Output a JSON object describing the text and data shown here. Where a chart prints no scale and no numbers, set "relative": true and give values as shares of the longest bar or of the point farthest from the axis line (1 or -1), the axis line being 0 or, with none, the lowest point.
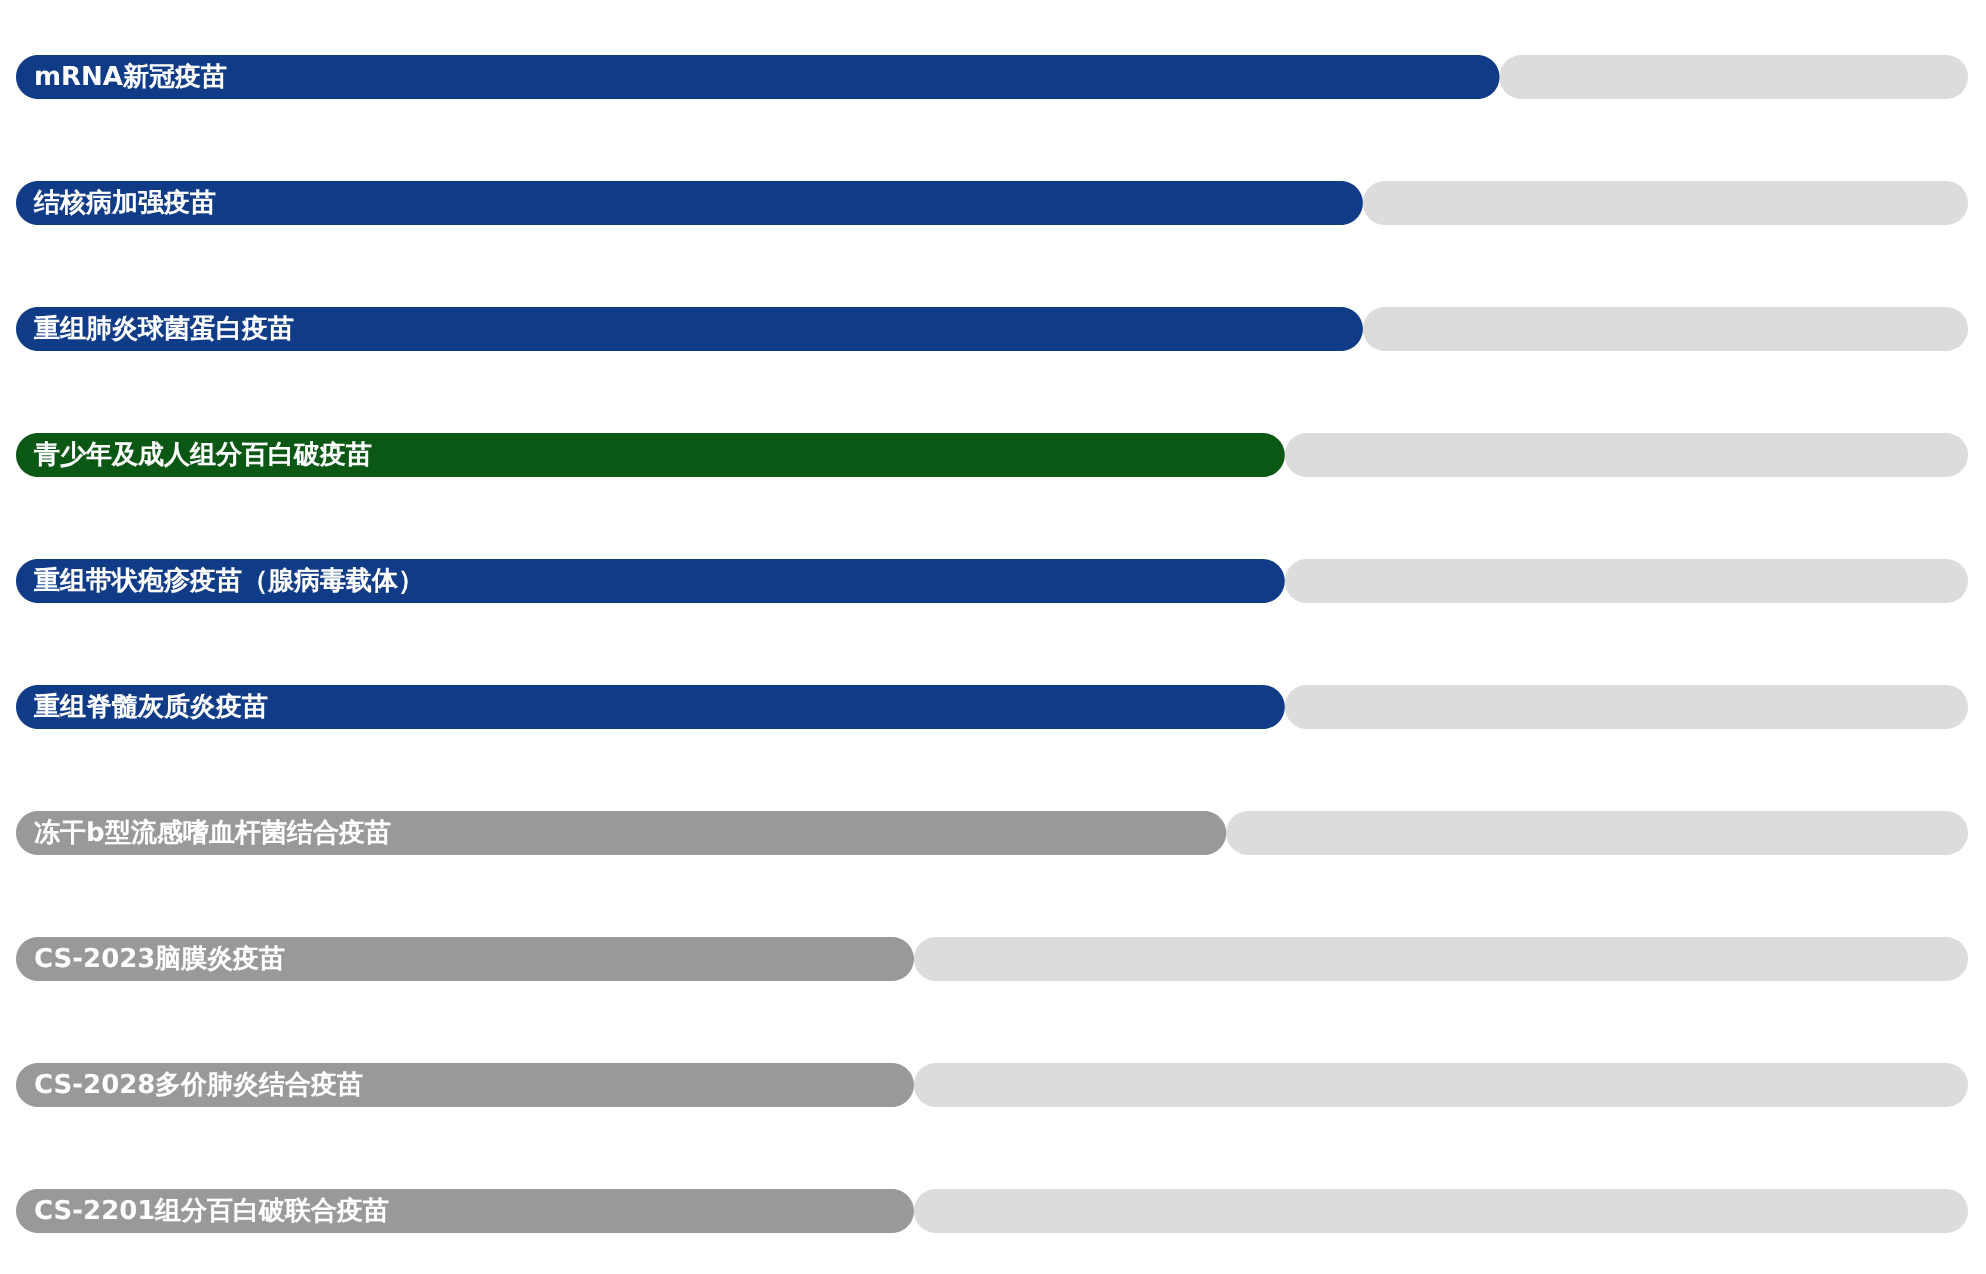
{
  "chart_data": {
    "type": "bar",
    "orientation": "horizontal",
    "stacked": true,
    "relative": true,
    "grid": false,
    "tick_labels": false,
    "categories": [
      "mRNA新冠疫苗",
      "结核病加强疫苗",
      "重组肺炎球菌蛋白疫苗",
      "青少年及成人组分百白破疫苗",
      "重组带状疱疹疫苗（腺病毒载体）",
      "重组脊髓灰质炎疫苗",
      "冻干b型流感嗜血杆菌结合疫苗",
      "CS-2023脑膜炎疫苗",
      "CS-2028多价肺炎结合疫苗",
      "CS-2201组分百白破联合疫苗"
    ],
    "series": [
      {
        "colors": [
          "#0f3b87",
          "#0f3b87",
          "#0f3b87",
          "#0b5714",
          "#0f3b87",
          "#0f3b87",
          "#999999",
          "#999999",
          "#999999",
          "#999999"
        ],
        "values": [
          0.76,
          0.69,
          0.69,
          0.65,
          0.65,
          0.65,
          0.62,
          0.46,
          0.46,
          0.46
        ]
      },
      {
        "color": "#dcdcdc",
        "values": [
          0.24,
          0.31,
          0.31,
          0.35,
          0.35,
          0.35,
          0.38,
          0.54,
          0.54,
          0.54
        ]
      }
    ]
  }
}
